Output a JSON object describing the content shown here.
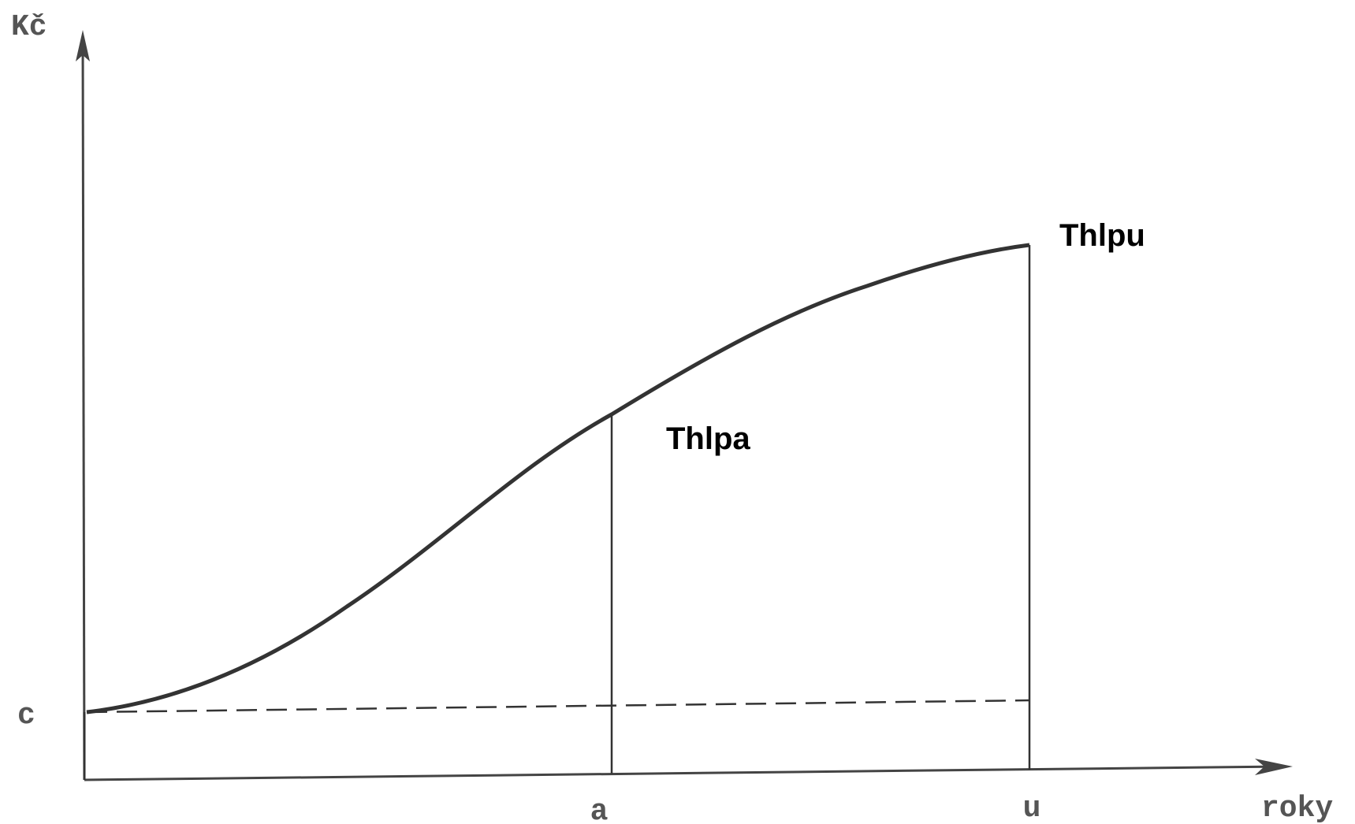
{
  "axes": {
    "y_label": "Kč",
    "x_label": "roky",
    "c_label": "c",
    "a_label": "a",
    "u_label": "u"
  },
  "points": {
    "a_point": "Thlpa",
    "u_point": "Thlpu"
  }
}
